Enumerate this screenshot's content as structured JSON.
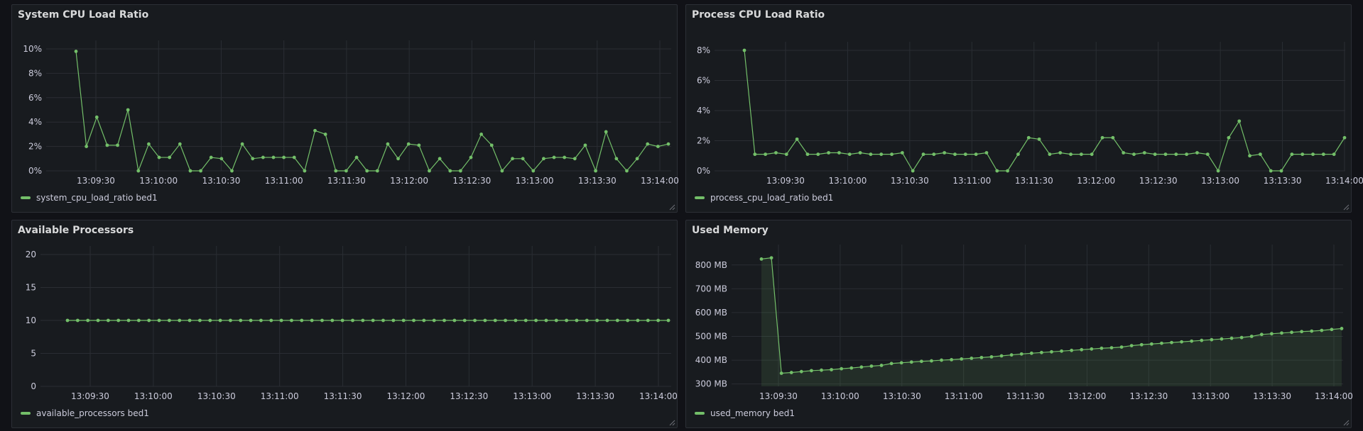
{
  "colors": {
    "series": "#73bf69",
    "grid": "#2a2d33",
    "panel_bg": "#181b1f"
  },
  "panels": [
    {
      "title": "System CPU Load Ratio",
      "legend": "system_cpu_load_ratio bed1",
      "chart_data": {
        "type": "line",
        "x_ticks": [
          "13:09:30",
          "13:10:00",
          "13:10:30",
          "13:11:00",
          "13:11:30",
          "13:12:00",
          "13:12:30",
          "13:13:00",
          "13:13:30",
          "13:14:00"
        ],
        "y_ticks": [
          "0%",
          "2%",
          "4%",
          "6%",
          "8%",
          "10%"
        ],
        "ylim": [
          0,
          10
        ],
        "series": [
          {
            "name": "system_cpu_load_ratio bed1",
            "values": [
              9.8,
              2.0,
              4.4,
              2.1,
              2.1,
              5.0,
              0.0,
              2.2,
              1.1,
              1.1,
              2.2,
              0.0,
              0.0,
              1.1,
              1.0,
              0.0,
              2.2,
              1.0,
              1.1,
              1.1,
              1.1,
              1.1,
              0.0,
              3.3,
              3.0,
              0.0,
              0.0,
              1.1,
              0.0,
              0.0,
              2.2,
              1.0,
              2.2,
              2.1,
              0.0,
              1.0,
              0.0,
              0.0,
              1.1,
              3.0,
              2.1,
              0.0,
              1.0,
              1.0,
              0.0,
              1.0,
              1.1,
              1.1,
              1.0,
              2.1,
              0.0,
              3.2,
              1.0,
              0.0,
              1.0,
              2.2,
              2.0,
              2.2
            ]
          }
        ]
      }
    },
    {
      "title": "Process CPU Load Ratio",
      "legend": "process_cpu_load_ratio bed1",
      "chart_data": {
        "type": "line",
        "x_ticks": [
          "13:09:30",
          "13:10:00",
          "13:10:30",
          "13:11:00",
          "13:11:30",
          "13:12:00",
          "13:12:30",
          "13:13:00",
          "13:13:30",
          "13:14:00"
        ],
        "y_ticks": [
          "0%",
          "2%",
          "4%",
          "6%",
          "8%"
        ],
        "ylim": [
          0,
          8
        ],
        "series": [
          {
            "name": "process_cpu_load_ratio bed1",
            "values": [
              8.0,
              1.1,
              1.1,
              1.2,
              1.1,
              2.1,
              1.1,
              1.1,
              1.2,
              1.2,
              1.1,
              1.2,
              1.1,
              1.1,
              1.1,
              1.2,
              0.0,
              1.1,
              1.1,
              1.2,
              1.1,
              1.1,
              1.1,
              1.2,
              0.0,
              0.0,
              1.1,
              2.2,
              2.1,
              1.1,
              1.2,
              1.1,
              1.1,
              1.1,
              2.2,
              2.2,
              1.2,
              1.1,
              1.2,
              1.1,
              1.1,
              1.1,
              1.1,
              1.2,
              1.1,
              0.0,
              2.2,
              3.3,
              1.0,
              1.1,
              0.0,
              0.0,
              1.1,
              1.1,
              1.1,
              1.1,
              1.1,
              2.2
            ]
          }
        ]
      }
    },
    {
      "title": "Available Processors",
      "legend": "available_processors bed1",
      "chart_data": {
        "type": "line",
        "x_ticks": [
          "13:09:30",
          "13:10:00",
          "13:10:30",
          "13:11:00",
          "13:11:30",
          "13:12:00",
          "13:12:30",
          "13:13:00",
          "13:13:30",
          "13:14:00"
        ],
        "y_ticks": [
          "0",
          "5",
          "10",
          "15",
          "20"
        ],
        "ylim": [
          0,
          20
        ],
        "series": [
          {
            "name": "available_processors bed1",
            "values": [
              10,
              10,
              10,
              10,
              10,
              10,
              10,
              10,
              10,
              10,
              10,
              10,
              10,
              10,
              10,
              10,
              10,
              10,
              10,
              10,
              10,
              10,
              10,
              10,
              10,
              10,
              10,
              10,
              10,
              10,
              10,
              10,
              10,
              10,
              10,
              10,
              10,
              10,
              10,
              10,
              10,
              10,
              10,
              10,
              10,
              10,
              10,
              10,
              10,
              10,
              10,
              10,
              10,
              10,
              10,
              10,
              10,
              10,
              10,
              10
            ]
          }
        ]
      }
    },
    {
      "title": "Used Memory",
      "legend": "used_memory bed1",
      "chart_data": {
        "type": "area",
        "x_ticks": [
          "13:09:30",
          "13:10:00",
          "13:10:30",
          "13:11:00",
          "13:11:30",
          "13:12:00",
          "13:12:30",
          "13:13:00",
          "13:13:30",
          "13:14:00"
        ],
        "y_ticks": [
          "300 MB",
          "400 MB",
          "500 MB",
          "600 MB",
          "700 MB",
          "800 MB"
        ],
        "ylim": [
          290,
          850
        ],
        "series": [
          {
            "name": "used_memory bed1",
            "values": [
              825,
              830,
              345,
              348,
              352,
              356,
              358,
              360,
              364,
              367,
              371,
              375,
              378,
              386,
              389,
              392,
              395,
              397,
              400,
              402,
              405,
              408,
              411,
              414,
              418,
              422,
              426,
              429,
              432,
              435,
              438,
              441,
              444,
              447,
              450,
              452,
              455,
              461,
              465,
              468,
              471,
              474,
              477,
              480,
              483,
              486,
              489,
              492,
              495,
              500,
              508,
              511,
              514,
              517,
              520,
              522,
              525,
              529,
              533
            ]
          }
        ]
      }
    }
  ]
}
